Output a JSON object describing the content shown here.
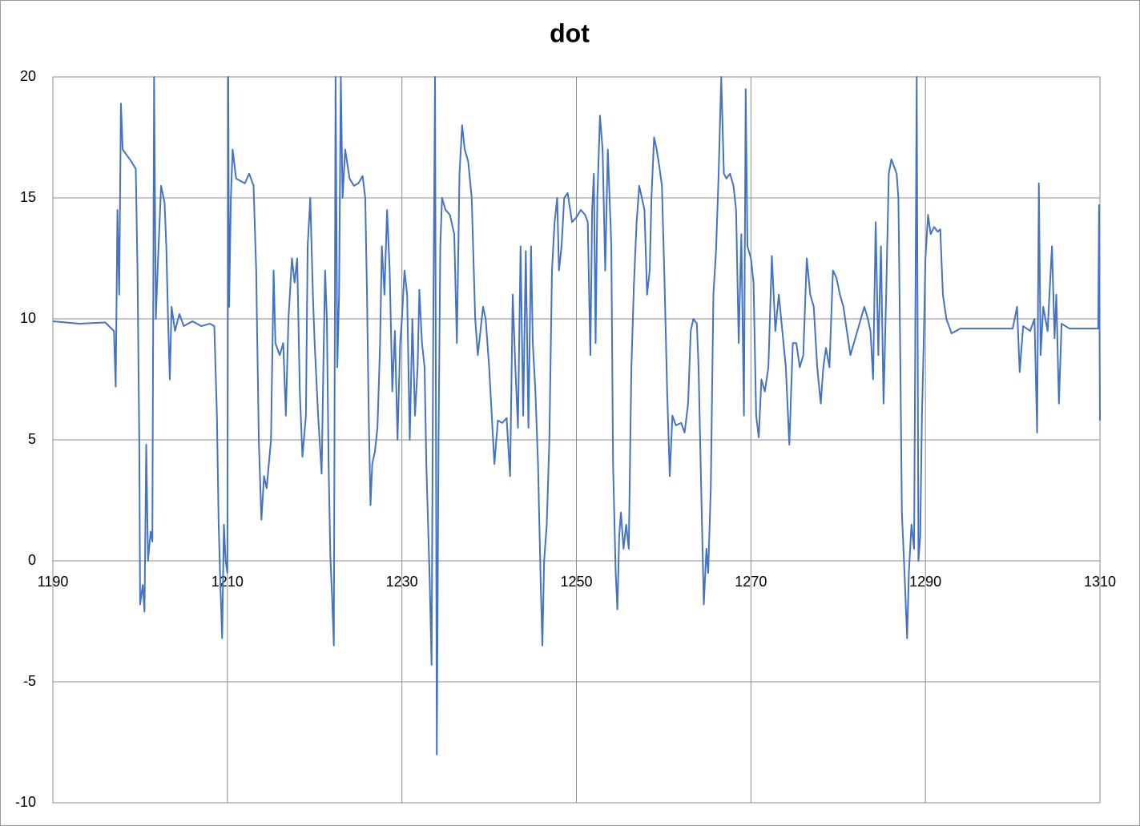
{
  "chart_data": {
    "type": "line",
    "title": "dot",
    "color": "#4472c4",
    "grid": true,
    "xlim": [
      1190,
      1310
    ],
    "xticks": [
      1190,
      1210,
      1230,
      1250,
      1270,
      1290,
      1310
    ],
    "ylim": [
      -10,
      20
    ],
    "yticks": [
      -10,
      -5,
      0,
      5,
      10,
      15,
      20
    ],
    "x": [
      1190,
      1193,
      1196,
      1197,
      1197.2,
      1197.4,
      1197.6,
      1197.8,
      1198,
      1199,
      1199.5,
      1199.7,
      1199.9,
      1200,
      1200.3,
      1200.5,
      1200.7,
      1200.9,
      1201.2,
      1201.4,
      1201.6,
      1201.8,
      1202,
      1202.4,
      1202.8,
      1203,
      1203.2,
      1203.4,
      1203.6,
      1204,
      1204.5,
      1205,
      1206,
      1207,
      1208,
      1208.5,
      1208.8,
      1209,
      1209.2,
      1209.4,
      1209.6,
      1209.8,
      1210,
      1210.1,
      1210.2,
      1210.4,
      1210.6,
      1211,
      1212,
      1212.5,
      1213,
      1213.3,
      1213.6,
      1213.9,
      1214.2,
      1214.5,
      1215,
      1215.3,
      1215.5,
      1216,
      1216.4,
      1216.7,
      1217,
      1217.4,
      1217.7,
      1218,
      1218.3,
      1218.6,
      1219,
      1219.2,
      1219.5,
      1219.8,
      1220,
      1220.4,
      1220.8,
      1221,
      1221.2,
      1221.4,
      1221.6,
      1221.8,
      1222,
      1222.2,
      1222.4,
      1222.6,
      1222.8,
      1223,
      1223.2,
      1223.5,
      1224,
      1224.5,
      1225,
      1225.5,
      1225.8,
      1226,
      1226.2,
      1226.4,
      1226.6,
      1226.9,
      1227.2,
      1227.5,
      1227.7,
      1228,
      1228.3,
      1228.6,
      1228.9,
      1229.2,
      1229.5,
      1229.8,
      1230,
      1230.3,
      1230.6,
      1230.9,
      1231.2,
      1231.5,
      1231.8,
      1232,
      1232.3,
      1232.6,
      1232.8,
      1233,
      1233.2,
      1233.4,
      1233.6,
      1233.8,
      1234,
      1234.2,
      1234.4,
      1234.6,
      1235,
      1235.5,
      1236,
      1236.3,
      1236.6,
      1236.9,
      1237.2,
      1237.6,
      1238,
      1238.4,
      1238.7,
      1239,
      1239.3,
      1239.6,
      1240,
      1240.3,
      1240.6,
      1241,
      1241.5,
      1242,
      1242.4,
      1242.7,
      1243,
      1243.3,
      1243.6,
      1243.9,
      1244.2,
      1244.5,
      1244.8,
      1245,
      1245.3,
      1245.6,
      1245.9,
      1246.1,
      1246.3,
      1246.6,
      1246.9,
      1247.2,
      1247.5,
      1247.8,
      1248,
      1248.3,
      1248.6,
      1249,
      1249.5,
      1250,
      1250.5,
      1251,
      1251.3,
      1251.6,
      1251.8,
      1252,
      1252.2,
      1252.4,
      1252.7,
      1253,
      1253.3,
      1253.6,
      1254,
      1254.2,
      1254.5,
      1254.7,
      1254.9,
      1255.1,
      1255.4,
      1255.7,
      1256,
      1256.3,
      1256.6,
      1256.9,
      1257.2,
      1257.5,
      1257.8,
      1258.1,
      1258.4,
      1258.6,
      1258.9,
      1259.2,
      1259.5,
      1259.8,
      1260.1,
      1260.4,
      1260.7,
      1261,
      1261.4,
      1262,
      1262.4,
      1262.8,
      1263.1,
      1263.4,
      1263.8,
      1264,
      1264.3,
      1264.6,
      1264.9,
      1265.1,
      1265.4,
      1265.7,
      1266,
      1266.3,
      1266.6,
      1266.9,
      1267.2,
      1267.6,
      1268,
      1268.3,
      1268.6,
      1268.9,
      1269.2,
      1269.4,
      1269.6,
      1270,
      1270.3,
      1270.6,
      1270.9,
      1271.2,
      1271.6,
      1272,
      1272.4,
      1272.8,
      1273.2,
      1273.6,
      1274,
      1274.4,
      1274.8,
      1275.2,
      1275.6,
      1276,
      1276.4,
      1276.8,
      1277.2,
      1277.6,
      1278,
      1278.3,
      1278.6,
      1279,
      1279.4,
      1279.8,
      1280.2,
      1280.6,
      1281,
      1281.4,
      1281.8,
      1282.2,
      1282.6,
      1283,
      1283.4,
      1283.7,
      1284,
      1284.3,
      1284.6,
      1284.9,
      1285.2,
      1285.5,
      1285.8,
      1286.1,
      1286.4,
      1286.7,
      1286.9,
      1287.1,
      1287.3,
      1287.6,
      1287.9,
      1288.1,
      1288.4,
      1288.7,
      1289,
      1289.2,
      1289.4,
      1289.6,
      1289.8,
      1290,
      1290.3,
      1290.6,
      1291,
      1291.4,
      1291.7,
      1292,
      1292.4,
      1292.8,
      1293,
      1294,
      1296,
      1298,
      1300,
      1300.5,
      1300.8,
      1301.2,
      1302,
      1302.5,
      1302.8,
      1303,
      1303.2,
      1303.5,
      1304,
      1304.5,
      1304.8,
      1305,
      1305.3,
      1305.6,
      1306.5,
      1308,
      1309,
      1309.8,
      1309.9,
      1310
    ],
    "values": [
      9.9,
      9.8,
      9.85,
      9.5,
      7.2,
      14.5,
      11,
      18.9,
      17,
      16.5,
      16.2,
      12,
      5,
      -1.8,
      -1,
      -2.1,
      4.8,
      0,
      1.2,
      0.8,
      20,
      10,
      12,
      15.5,
      14.8,
      13,
      10,
      7.5,
      10.5,
      9.5,
      10.2,
      9.7,
      9.9,
      9.7,
      9.8,
      9.7,
      6,
      1.5,
      -1,
      -3.2,
      1.5,
      0,
      -0.5,
      20,
      10.5,
      15,
      17,
      15.8,
      15.6,
      16,
      15.5,
      12,
      5,
      1.7,
      3.5,
      3,
      5,
      12,
      9,
      8.5,
      9,
      6,
      10,
      12.5,
      11.5,
      12.5,
      7,
      4.3,
      6,
      13,
      15,
      11,
      9,
      6,
      3.6,
      8,
      12,
      10,
      4,
      0.2,
      -1.5,
      -3.5,
      20,
      8,
      11,
      20,
      15,
      17,
      15.8,
      15.5,
      15.6,
      15.9,
      15,
      11,
      6,
      2.3,
      4,
      4.5,
      5.5,
      9,
      13,
      11,
      14.5,
      12,
      7,
      9.5,
      5,
      9,
      10,
      12,
      11,
      5,
      10,
      6,
      8,
      11.2,
      9,
      8,
      4,
      1.5,
      -1,
      -4.3,
      10,
      20,
      -8,
      5,
      13,
      15,
      14.5,
      14.3,
      13.5,
      9,
      16,
      18,
      17,
      16.5,
      15,
      10,
      8.5,
      9.5,
      10.5,
      10,
      8,
      6,
      4,
      5.8,
      5.7,
      5.9,
      3.5,
      11,
      8,
      5.5,
      13,
      6,
      12.8,
      5.5,
      13,
      9,
      7,
      4,
      -0.8,
      -3.5,
      0,
      1.5,
      5,
      12,
      14,
      15,
      12,
      13,
      15,
      15.2,
      14,
      14.2,
      14.5,
      14.3,
      14,
      8.5,
      14.5,
      16,
      9,
      15,
      18.4,
      17,
      12,
      17,
      13,
      4,
      -0.5,
      -2,
      1,
      2,
      0.5,
      1.5,
      0.5,
      8,
      11.5,
      14,
      15.5,
      15,
      14.5,
      11,
      12,
      15,
      17.5,
      17,
      16.3,
      15.5,
      11.5,
      7,
      3.5,
      6,
      5.6,
      5.7,
      5.3,
      6.5,
      9.5,
      10,
      9.8,
      8,
      3,
      -1.8,
      0.5,
      -0.5,
      3,
      11,
      12.8,
      16,
      20,
      16,
      15.8,
      16,
      15.5,
      14.5,
      9,
      13.5,
      6,
      19.5,
      13,
      12.5,
      11.5,
      6,
      5.1,
      7.5,
      7,
      8,
      12.6,
      9.5,
      11,
      9.5,
      8,
      4.8,
      9,
      9,
      8,
      8.5,
      12.5,
      11,
      10.5,
      8,
      6.5,
      8,
      8.8,
      8,
      12,
      11.7,
      11,
      10.5,
      9.5,
      8.5,
      9,
      9.5,
      10,
      10.5,
      10,
      9.5,
      7.5,
      14,
      8.5,
      13,
      6.5,
      11,
      16,
      16.6,
      16.3,
      16,
      15,
      9,
      2,
      -0.5,
      -3.2,
      -0.5,
      1.5,
      0.5,
      20,
      0,
      1,
      6,
      9,
      12.5,
      14.3,
      13.5,
      13.8,
      13.6,
      13.7,
      11,
      10,
      9.6,
      9.4,
      9.6,
      9.6,
      9.6,
      9.6,
      10.5,
      7.8,
      9.7,
      9.5,
      10,
      5.3,
      15.6,
      8.5,
      10.5,
      9.5,
      13,
      9.2,
      11,
      6.5,
      9.8,
      9.6,
      9.6,
      9.6,
      9.6,
      14.7,
      5.8
    ]
  }
}
